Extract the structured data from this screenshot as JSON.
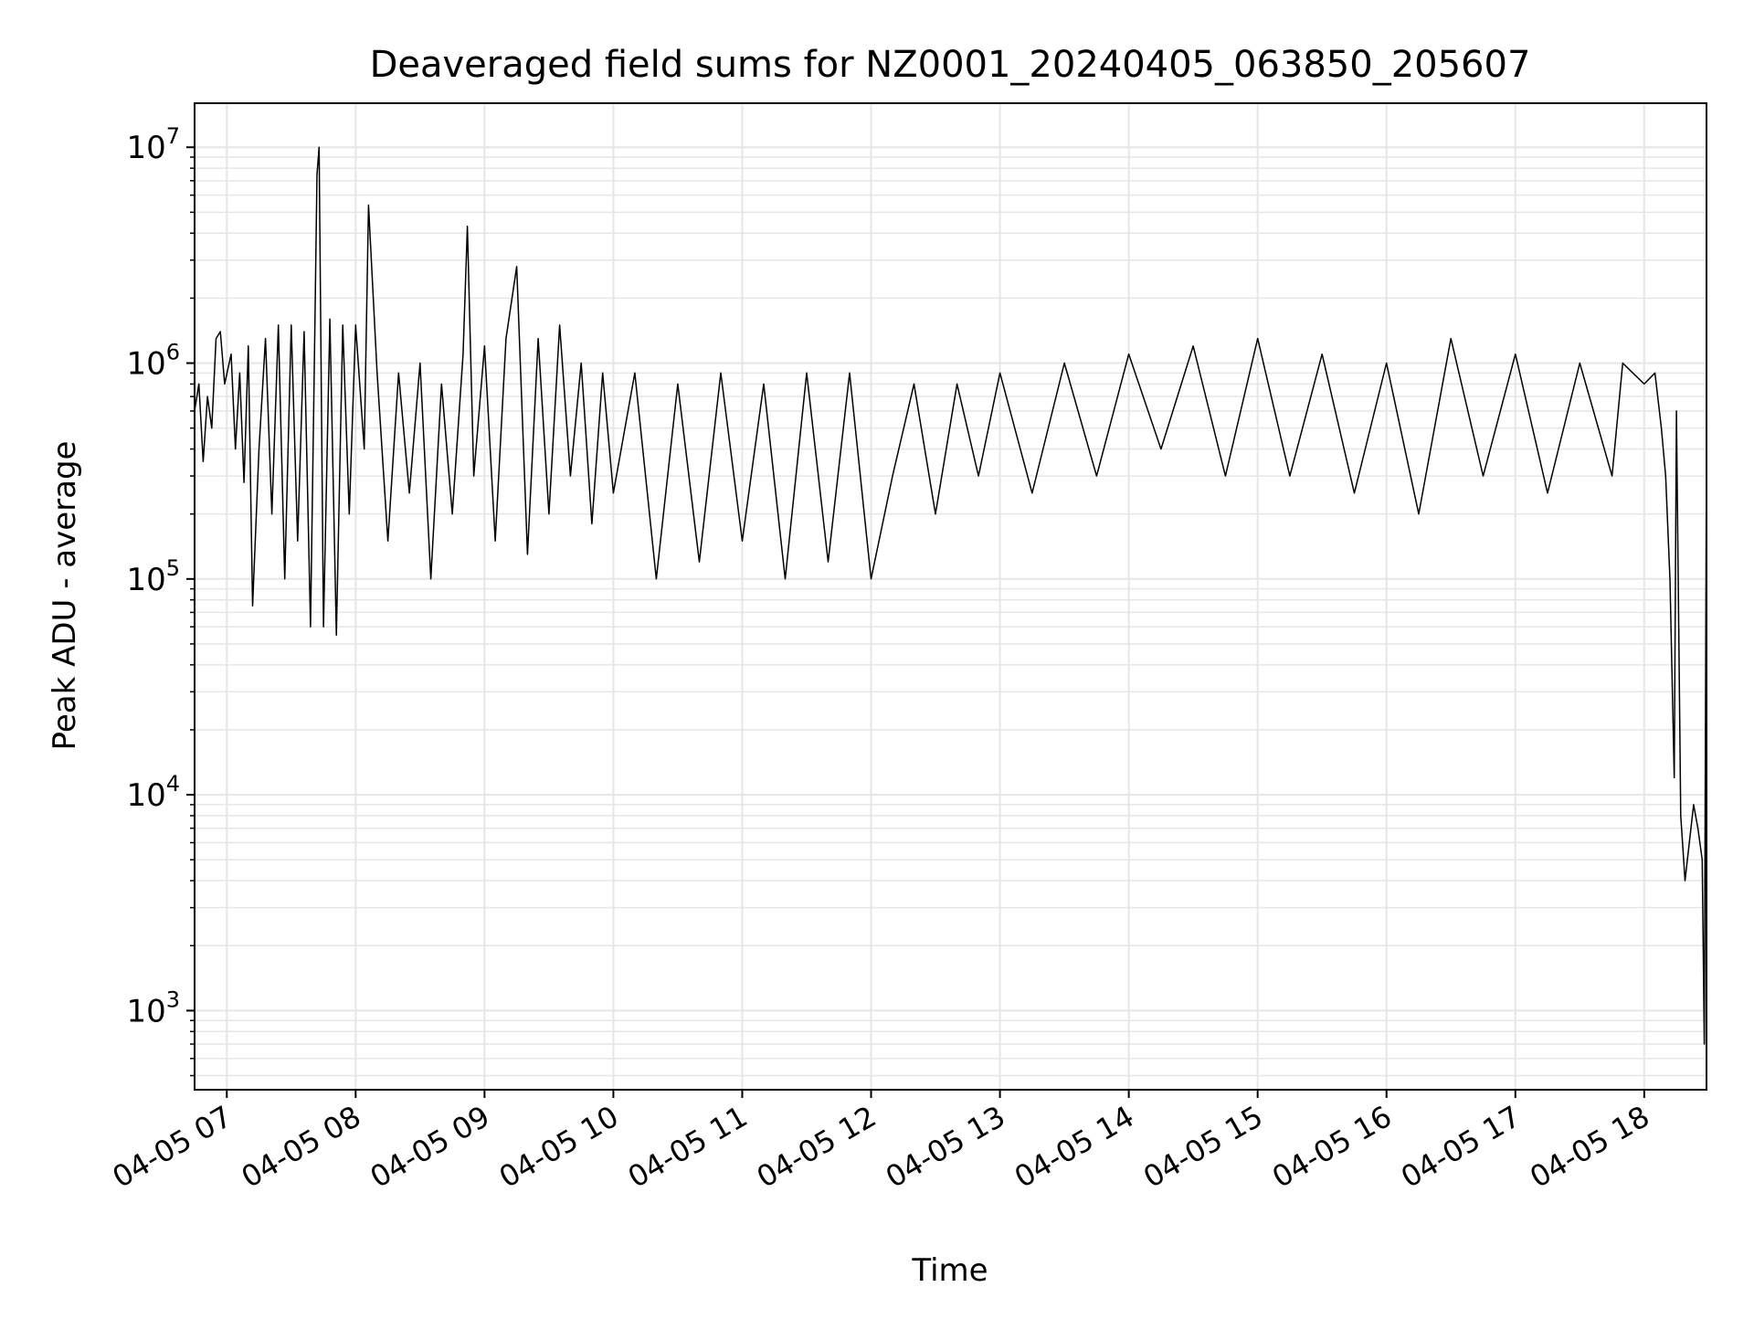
{
  "chart_data": {
    "type": "line",
    "title": "Deaveraged field sums for NZ0001_20240405_063850_205607",
    "xlabel": "Time",
    "ylabel": "Peak ADU - average",
    "y_scale": "log",
    "ylim": [
      430,
      16000000
    ],
    "xlim": [
      "04-05 06:45",
      "04-05 18:29"
    ],
    "grid": true,
    "x_tick_labels": [
      "04-05 07",
      "04-05 08",
      "04-05 09",
      "04-05 10",
      "04-05 11",
      "04-05 12",
      "04-05 13",
      "04-05 14",
      "04-05 15",
      "04-05 16",
      "04-05 17",
      "04-05 18"
    ],
    "y_ticks": [
      {
        "value": 1000,
        "base": "10",
        "exp": "3"
      },
      {
        "value": 10000,
        "base": "10",
        "exp": "4"
      },
      {
        "value": 100000,
        "base": "10",
        "exp": "5"
      },
      {
        "value": 1000000,
        "base": "10",
        "exp": "6"
      },
      {
        "value": 10000000,
        "base": "10",
        "exp": "7"
      }
    ],
    "series_color": "#000000",
    "grid_color": "#e6e6e6",
    "series": [
      {
        "x": [
          "04-05 06:45",
          "04-05 06:47",
          "04-05 06:49",
          "04-05 06:51",
          "04-05 06:53",
          "04-05 06:55",
          "04-05 06:57",
          "04-05 06:59",
          "04-05 07:02",
          "04-05 07:04",
          "04-05 07:06",
          "04-05 07:08",
          "04-05 07:10",
          "04-05 07:12",
          "04-05 07:15",
          "04-05 07:18",
          "04-05 07:21",
          "04-05 07:24",
          "04-05 07:27",
          "04-05 07:30",
          "04-05 07:33",
          "04-05 07:36",
          "04-05 07:39",
          "04-05 07:41",
          "04-05 07:42",
          "04-05 07:43",
          "04-05 07:45",
          "04-05 07:48",
          "04-05 07:51",
          "04-05 07:54",
          "04-05 07:57",
          "04-05 08:00",
          "04-05 08:04",
          "04-05 08:06",
          "04-05 08:10",
          "04-05 08:15",
          "04-05 08:20",
          "04-05 08:25",
          "04-05 08:30",
          "04-05 08:35",
          "04-05 08:40",
          "04-05 08:45",
          "04-05 08:50",
          "04-05 08:52",
          "04-05 08:55",
          "04-05 09:00",
          "04-05 09:05",
          "04-05 09:10",
          "04-05 09:15",
          "04-05 09:20",
          "04-05 09:25",
          "04-05 09:30",
          "04-05 09:35",
          "04-05 09:40",
          "04-05 09:45",
          "04-05 09:50",
          "04-05 09:55",
          "04-05 10:00",
          "04-05 10:10",
          "04-05 10:20",
          "04-05 10:30",
          "04-05 10:40",
          "04-05 10:50",
          "04-05 11:00",
          "04-05 11:10",
          "04-05 11:20",
          "04-05 11:30",
          "04-05 11:40",
          "04-05 11:50",
          "04-05 12:00",
          "04-05 12:10",
          "04-05 12:20",
          "04-05 12:30",
          "04-05 12:40",
          "04-05 12:50",
          "04-05 13:00",
          "04-05 13:15",
          "04-05 13:30",
          "04-05 13:45",
          "04-05 14:00",
          "04-05 14:15",
          "04-05 14:30",
          "04-05 14:45",
          "04-05 15:00",
          "04-05 15:15",
          "04-05 15:30",
          "04-05 15:45",
          "04-05 16:00",
          "04-05 16:15",
          "04-05 16:30",
          "04-05 16:45",
          "04-05 17:00",
          "04-05 17:15",
          "04-05 17:30",
          "04-05 17:45",
          "04-05 17:50",
          "04-05 18:00",
          "04-05 18:05",
          "04-05 18:08",
          "04-05 18:10",
          "04-05 18:12",
          "04-05 18:14",
          "04-05 18:15",
          "04-05 18:17",
          "04-05 18:19",
          "04-05 18:21",
          "04-05 18:23",
          "04-05 18:25",
          "04-05 18:27",
          "04-05 18:28",
          "04-05 18:29"
        ],
        "y": [
          600000,
          800000,
          350000,
          700000,
          500000,
          1300000,
          1400000,
          800000,
          1100000,
          400000,
          900000,
          280000,
          1200000,
          75000,
          400000,
          1300000,
          200000,
          1500000,
          100000,
          1500000,
          150000,
          1400000,
          60000,
          1400000,
          7500000,
          10000000,
          60000,
          1600000,
          55000,
          1500000,
          200000,
          1500000,
          400000,
          5400000,
          900000,
          150000,
          900000,
          250000,
          1000000,
          100000,
          800000,
          200000,
          1100000,
          4300000,
          300000,
          1200000,
          150000,
          1300000,
          2800000,
          130000,
          1300000,
          200000,
          1500000,
          300000,
          1000000,
          180000,
          900000,
          250000,
          900000,
          100000,
          800000,
          120000,
          900000,
          150000,
          800000,
          100000,
          900000,
          120000,
          900000,
          100000,
          300000,
          800000,
          200000,
          800000,
          300000,
          900000,
          250000,
          1000000,
          300000,
          1100000,
          400000,
          1200000,
          300000,
          1300000,
          300000,
          1100000,
          250000,
          1000000,
          200000,
          1300000,
          300000,
          1100000,
          250000,
          1000000,
          300000,
          1000000,
          800000,
          900000,
          500000,
          300000,
          100000,
          12000,
          600000,
          8000,
          4000,
          6000,
          9000,
          7000,
          5000,
          700,
          450000
        ]
      }
    ]
  }
}
